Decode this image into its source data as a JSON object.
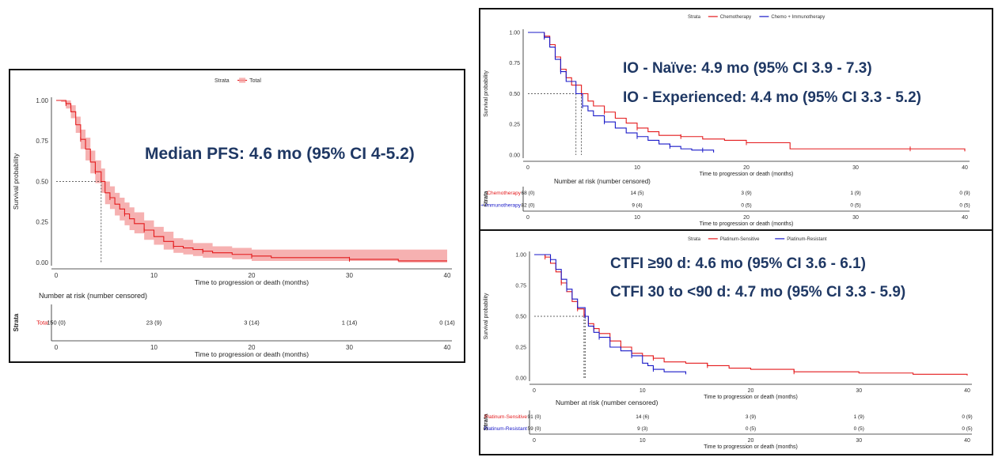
{
  "colors": {
    "red": "#e41a1c",
    "blue": "#1a1ac8",
    "band": "#f5a3a3",
    "annot": "#1f3864",
    "grid": "#222222"
  },
  "footnote": "",
  "chart_data": [
    {
      "type": "line",
      "id": "total",
      "legend": {
        "title": "Strata",
        "entries": [
          "Total"
        ],
        "placement": "top"
      },
      "annotations": [
        "Median PFS: 4.6 mo (95% CI 4-5.2)"
      ],
      "xlabel": "Time to progression or death (months)",
      "ylabel": "Survival probability",
      "xlim": [
        0,
        40
      ],
      "ylim": [
        0,
        1
      ],
      "xticks": [
        "0",
        "10",
        "20",
        "30",
        "40"
      ],
      "yticks": [
        "0.00",
        "0.25",
        "0.50",
        "0.75",
        "1.00"
      ],
      "median": 4.6,
      "series": [
        {
          "name": "Total",
          "color": "#e41a1c",
          "x": [
            0,
            0.5,
            1,
            1.5,
            2,
            2.5,
            3,
            3.5,
            4,
            4.6,
            5,
            5.5,
            6,
            6.5,
            7,
            7.5,
            8,
            9,
            10,
            11,
            12,
            13,
            14,
            15,
            16,
            18,
            20,
            22,
            24,
            30,
            35,
            40
          ],
          "y": [
            1,
            1,
            0.98,
            0.93,
            0.85,
            0.76,
            0.7,
            0.62,
            0.56,
            0.5,
            0.43,
            0.4,
            0.36,
            0.33,
            0.3,
            0.27,
            0.24,
            0.2,
            0.16,
            0.13,
            0.1,
            0.09,
            0.08,
            0.07,
            0.06,
            0.05,
            0.04,
            0.03,
            0.03,
            0.02,
            0.01,
            0.01
          ],
          "ci_low": [
            1,
            0.99,
            0.95,
            0.89,
            0.8,
            0.7,
            0.63,
            0.55,
            0.49,
            0.43,
            0.36,
            0.33,
            0.29,
            0.26,
            0.23,
            0.2,
            0.18,
            0.14,
            0.11,
            0.08,
            0.06,
            0.05,
            0.04,
            0.03,
            0.03,
            0.02,
            0.01,
            0.01,
            0.01,
            0.01,
            0,
            0
          ],
          "ci_high": [
            1,
            1,
            1,
            0.97,
            0.9,
            0.82,
            0.77,
            0.69,
            0.63,
            0.58,
            0.5,
            0.47,
            0.43,
            0.4,
            0.37,
            0.34,
            0.31,
            0.26,
            0.22,
            0.19,
            0.15,
            0.14,
            0.12,
            0.12,
            0.1,
            0.09,
            0.08,
            0.08,
            0.08,
            0.08,
            0.08,
            0.08
          ]
        }
      ],
      "risk_table": {
        "title": "Number at risk (number censored)",
        "strata_label": "Strata",
        "times": [
          "0",
          "10",
          "20",
          "30",
          "40"
        ],
        "rows": [
          {
            "label": "Total",
            "color": "#e41a1c",
            "values": [
              "150 (0)",
              "23 (9)",
              "3 (14)",
              "1 (14)",
              "0 (14)"
            ]
          }
        ]
      }
    },
    {
      "type": "line",
      "id": "io",
      "legend": {
        "title": "Strata",
        "entries": [
          "Chemotherapy",
          "Chemo + Immunotherapy"
        ],
        "placement": "top"
      },
      "annotations": [
        "IO - Naïve: 4.9 mo (95% CI 3.9 - 7.3)",
        "IO - Experienced: 4.4 mo (95% CI 3.3 - 5.2)"
      ],
      "xlabel": "Time to progression or death (months)",
      "ylabel": "Survival probability",
      "xlim": [
        0,
        40
      ],
      "ylim": [
        0,
        1
      ],
      "xticks": [
        "0",
        "10",
        "20",
        "30",
        "40"
      ],
      "yticks": [
        "0.00",
        "0.25",
        "0.50",
        "0.75",
        "1.00"
      ],
      "medians": [
        4.9,
        4.4
      ],
      "series": [
        {
          "name": "Chemotherapy",
          "color": "#e41a1c",
          "x": [
            0,
            1,
            1.5,
            2,
            2.5,
            3,
            3.5,
            4,
            4.9,
            5.5,
            6,
            7,
            8,
            9,
            10,
            11,
            12,
            14,
            16,
            18,
            20,
            24,
            30,
            35,
            40
          ],
          "y": [
            1,
            1,
            0.97,
            0.9,
            0.8,
            0.7,
            0.63,
            0.57,
            0.5,
            0.44,
            0.4,
            0.35,
            0.3,
            0.26,
            0.22,
            0.19,
            0.16,
            0.15,
            0.13,
            0.12,
            0.1,
            0.05,
            0.05,
            0.05,
            0.03
          ]
        },
        {
          "name": "Chemo + Immunotherapy",
          "color": "#1a1ac8",
          "x": [
            0,
            1,
            1.5,
            2,
            2.5,
            3,
            3.5,
            4.4,
            5,
            5.5,
            6,
            7,
            8,
            9,
            10,
            11,
            12,
            13,
            14,
            15,
            16,
            17
          ],
          "y": [
            1,
            1,
            0.96,
            0.88,
            0.78,
            0.68,
            0.6,
            0.5,
            0.4,
            0.36,
            0.32,
            0.27,
            0.22,
            0.18,
            0.15,
            0.12,
            0.09,
            0.07,
            0.05,
            0.04,
            0.04,
            0.02
          ]
        }
      ],
      "risk_table": {
        "title": "Number at risk (number censored)",
        "strata_label": "Strata",
        "times": [
          "0",
          "10",
          "20",
          "30",
          "40"
        ],
        "rows": [
          {
            "label": "Chemotherapy",
            "color": "#e41a1c",
            "values": [
              "68 (0)",
              "14 (5)",
              "3 (9)",
              "1 (9)",
              "0 (9)"
            ]
          },
          {
            "label": "Chemo + Immunotherapy",
            "color": "#1a1ac8",
            "values": [
              "82 (0)",
              "9 (4)",
              "0 (5)",
              "0 (5)",
              "0 (5)"
            ]
          }
        ]
      }
    },
    {
      "type": "line",
      "id": "ctfi",
      "legend": {
        "title": "Strata",
        "entries": [
          "Platinum-Sensitive",
          "Platinum-Resistant"
        ],
        "placement": "top"
      },
      "annotations": [
        "CTFI ≥90 d: 4.6 mo (95% CI 3.6 - 6.1)",
        "CTFI 30 to <90 d: 4.7 mo (95% CI 3.3 - 5.9)"
      ],
      "xlabel": "Time to progression or death (months)",
      "ylabel": "Survival probability",
      "xlim": [
        0,
        40
      ],
      "ylim": [
        0,
        1
      ],
      "xticks": [
        "0",
        "10",
        "20",
        "30",
        "40"
      ],
      "yticks": [
        "0.00",
        "0.25",
        "0.50",
        "0.75",
        "1.00"
      ],
      "medians": [
        4.6,
        4.7
      ],
      "series": [
        {
          "name": "Platinum-Sensitive",
          "color": "#e41a1c",
          "x": [
            0,
            0.5,
            1,
            1.5,
            2,
            2.5,
            3,
            3.5,
            4,
            4.6,
            5,
            5.5,
            6,
            7,
            8,
            9,
            10,
            11,
            12,
            14,
            16,
            18,
            20,
            24,
            30,
            35,
            40
          ],
          "y": [
            1,
            1,
            0.98,
            0.93,
            0.86,
            0.77,
            0.7,
            0.62,
            0.56,
            0.5,
            0.44,
            0.4,
            0.36,
            0.3,
            0.25,
            0.2,
            0.18,
            0.16,
            0.13,
            0.12,
            0.1,
            0.08,
            0.07,
            0.05,
            0.04,
            0.03,
            0.02
          ]
        },
        {
          "name": "Platinum-Resistant",
          "color": "#1a1ac8",
          "x": [
            0,
            1,
            1.5,
            2,
            2.5,
            3,
            3.5,
            4,
            4.7,
            5,
            5.5,
            6,
            7,
            8,
            9,
            10,
            10.5,
            11,
            12,
            14
          ],
          "y": [
            1,
            1,
            0.96,
            0.88,
            0.8,
            0.72,
            0.64,
            0.57,
            0.5,
            0.42,
            0.37,
            0.33,
            0.25,
            0.22,
            0.18,
            0.12,
            0.1,
            0.07,
            0.05,
            0.03
          ]
        }
      ],
      "risk_table": {
        "title": "Number at risk (number censored)",
        "strata_label": "Strata",
        "times": [
          "0",
          "10",
          "20",
          "30",
          "40"
        ],
        "rows": [
          {
            "label": "Platinum-Sensitive",
            "color": "#e41a1c",
            "values": [
              "91 (0)",
              "14 (6)",
              "3 (9)",
              "1 (9)",
              "0 (9)"
            ]
          },
          {
            "label": "Platinum-Resistant",
            "color": "#1a1ac8",
            "values": [
              "59 (0)",
              "9 (3)",
              "0 (5)",
              "0 (5)",
              "0 (5)"
            ]
          }
        ]
      }
    }
  ]
}
